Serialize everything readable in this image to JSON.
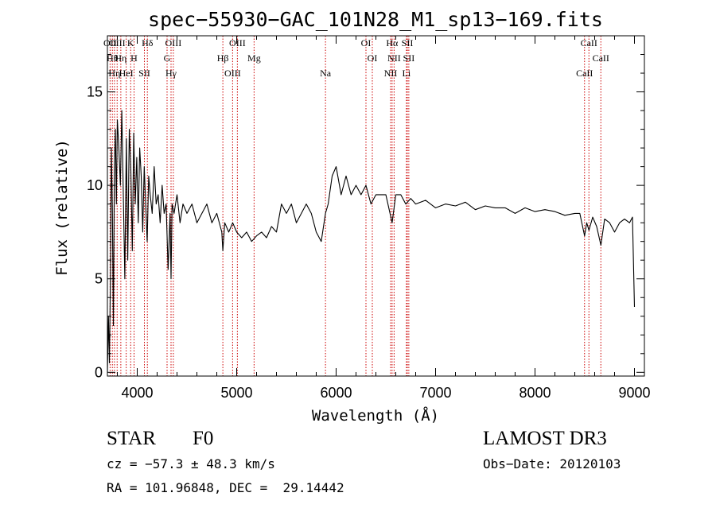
{
  "chart_data": {
    "type": "line",
    "title": "spec−55930−GAC_101N28_M1_sp13−169.fits",
    "xlabel": "Wavelength (Å)",
    "ylabel": "Flux (relative)",
    "xlim": [
      3700,
      9100
    ],
    "ylim": [
      -0.2,
      18.0
    ],
    "xticks": [
      4000,
      5000,
      6000,
      7000,
      8000,
      9000
    ],
    "xtick_labels": [
      "4000",
      "5000",
      "6000",
      "7000",
      "8000",
      "9000"
    ],
    "yticks": [
      0,
      5,
      10,
      15
    ],
    "ytick_labels": [
      "0",
      "5",
      "10",
      "15"
    ],
    "grid": false,
    "series": [
      {
        "x": [
          3700,
          3710,
          3720,
          3730,
          3740,
          3750,
          3760,
          3770,
          3780,
          3790,
          3800,
          3815,
          3830,
          3845,
          3860,
          3875,
          3890,
          3905,
          3920,
          3935,
          3950,
          3965,
          3980,
          3995,
          4010,
          4025,
          4040,
          4055,
          4070,
          4085,
          4100,
          4115,
          4130,
          4150,
          4170,
          4190,
          4210,
          4230,
          4250,
          4270,
          4290,
          4310,
          4330,
          4340,
          4350,
          4370,
          4400,
          4430,
          4460,
          4500,
          4550,
          4600,
          4650,
          4700,
          4750,
          4800,
          4850,
          4861,
          4880,
          4920,
          4960,
          5000,
          5050,
          5100,
          5150,
          5200,
          5250,
          5300,
          5350,
          5400,
          5450,
          5500,
          5550,
          5600,
          5650,
          5700,
          5750,
          5800,
          5850,
          5893,
          5920,
          5960,
          6000,
          6050,
          6100,
          6150,
          6200,
          6250,
          6300,
          6350,
          6400,
          6450,
          6500,
          6563,
          6600,
          6650,
          6700,
          6750,
          6800,
          6900,
          7000,
          7100,
          7200,
          7300,
          7400,
          7500,
          7600,
          7700,
          7800,
          7900,
          8000,
          8100,
          8200,
          8300,
          8400,
          8450,
          8498,
          8520,
          8542,
          8580,
          8620,
          8662,
          8700,
          8750,
          8800,
          8850,
          8900,
          8950,
          8980,
          9000
        ],
        "y": [
          0.0,
          3.0,
          0.5,
          5.0,
          12.0,
          8.5,
          2.5,
          11.0,
          13.0,
          9.0,
          13.5,
          12.0,
          10.0,
          14.0,
          9.5,
          5.0,
          12.5,
          6.0,
          13.0,
          11.0,
          6.5,
          12.8,
          9.0,
          11.5,
          8.0,
          12.0,
          10.5,
          7.5,
          11.0,
          9.0,
          7.0,
          10.5,
          9.5,
          8.5,
          11.0,
          9.0,
          9.5,
          8.0,
          10.0,
          8.5,
          9.0,
          5.5,
          8.5,
          5.0,
          9.0,
          8.5,
          9.5,
          8.0,
          9.0,
          8.5,
          9.0,
          8.0,
          8.5,
          9.0,
          8.0,
          8.5,
          7.5,
          6.5,
          8.0,
          7.5,
          8.0,
          7.5,
          7.2,
          7.5,
          7.0,
          7.3,
          7.5,
          7.2,
          7.8,
          7.5,
          9.0,
          8.5,
          9.0,
          8.0,
          8.5,
          9.0,
          8.5,
          7.5,
          7.0,
          8.5,
          9.0,
          10.5,
          11.0,
          9.5,
          10.5,
          9.5,
          10.0,
          9.5,
          10.0,
          9.0,
          9.5,
          9.5,
          9.5,
          8.0,
          9.5,
          9.5,
          9.0,
          9.3,
          9.0,
          9.2,
          8.8,
          9.0,
          8.9,
          9.1,
          8.7,
          8.9,
          8.8,
          8.8,
          8.5,
          8.8,
          8.6,
          8.7,
          8.6,
          8.4,
          8.5,
          8.5,
          7.3,
          8.0,
          7.6,
          8.3,
          7.8,
          6.8,
          8.2,
          8.0,
          7.5,
          8.0,
          8.2,
          8.0,
          8.3,
          3.5
        ]
      }
    ],
    "line_labels": [
      {
        "wavelength": 3727,
        "text": "OII"
      },
      {
        "wavelength": 3750,
        "text": "Hθ"
      },
      {
        "wavelength": 3771,
        "text": "Hη"
      },
      {
        "wavelength": 3798,
        "text": "OIII"
      },
      {
        "wavelength": 3835,
        "text": "Hη"
      },
      {
        "wavelength": 3889,
        "text": "HeI"
      },
      {
        "wavelength": 3934,
        "text": "K"
      },
      {
        "wavelength": 3968,
        "text": "H"
      },
      {
        "wavelength": 4072,
        "text": "SII"
      },
      {
        "wavelength": 4102,
        "text": "Hδ"
      },
      {
        "wavelength": 4300,
        "text": "G"
      },
      {
        "wavelength": 4340,
        "text": "Hγ"
      },
      {
        "wavelength": 4363,
        "text": "OIII"
      },
      {
        "wavelength": 4861,
        "text": "Hβ"
      },
      {
        "wavelength": 4959,
        "text": "OIII"
      },
      {
        "wavelength": 5007,
        "text": "OIII"
      },
      {
        "wavelength": 5175,
        "text": "Mg"
      },
      {
        "wavelength": 5893,
        "text": "Na"
      },
      {
        "wavelength": 6300,
        "text": "OI"
      },
      {
        "wavelength": 6364,
        "text": "OI"
      },
      {
        "wavelength": 6548,
        "text": "NII"
      },
      {
        "wavelength": 6563,
        "text": "Hα"
      },
      {
        "wavelength": 6583,
        "text": "NII"
      },
      {
        "wavelength": 6707,
        "text": "Li"
      },
      {
        "wavelength": 6716,
        "text": "SII"
      },
      {
        "wavelength": 6731,
        "text": "SII"
      },
      {
        "wavelength": 8498,
        "text": "CaII"
      },
      {
        "wavelength": 8542,
        "text": "CaII"
      },
      {
        "wavelength": 8662,
        "text": "CaII"
      }
    ],
    "colors": {
      "spectrum": "#000000",
      "line_markers": "#cc0000"
    }
  },
  "info": {
    "object_class": "STAR",
    "subclass": "F0",
    "survey": "LAMOST DR3",
    "redshift_text": "cz = −57.3 ± 48.3 km/s",
    "obs_date_text": "Obs−Date: 20120103",
    "coords_text": "RA = 101.96848, DEC =  29.14442"
  }
}
